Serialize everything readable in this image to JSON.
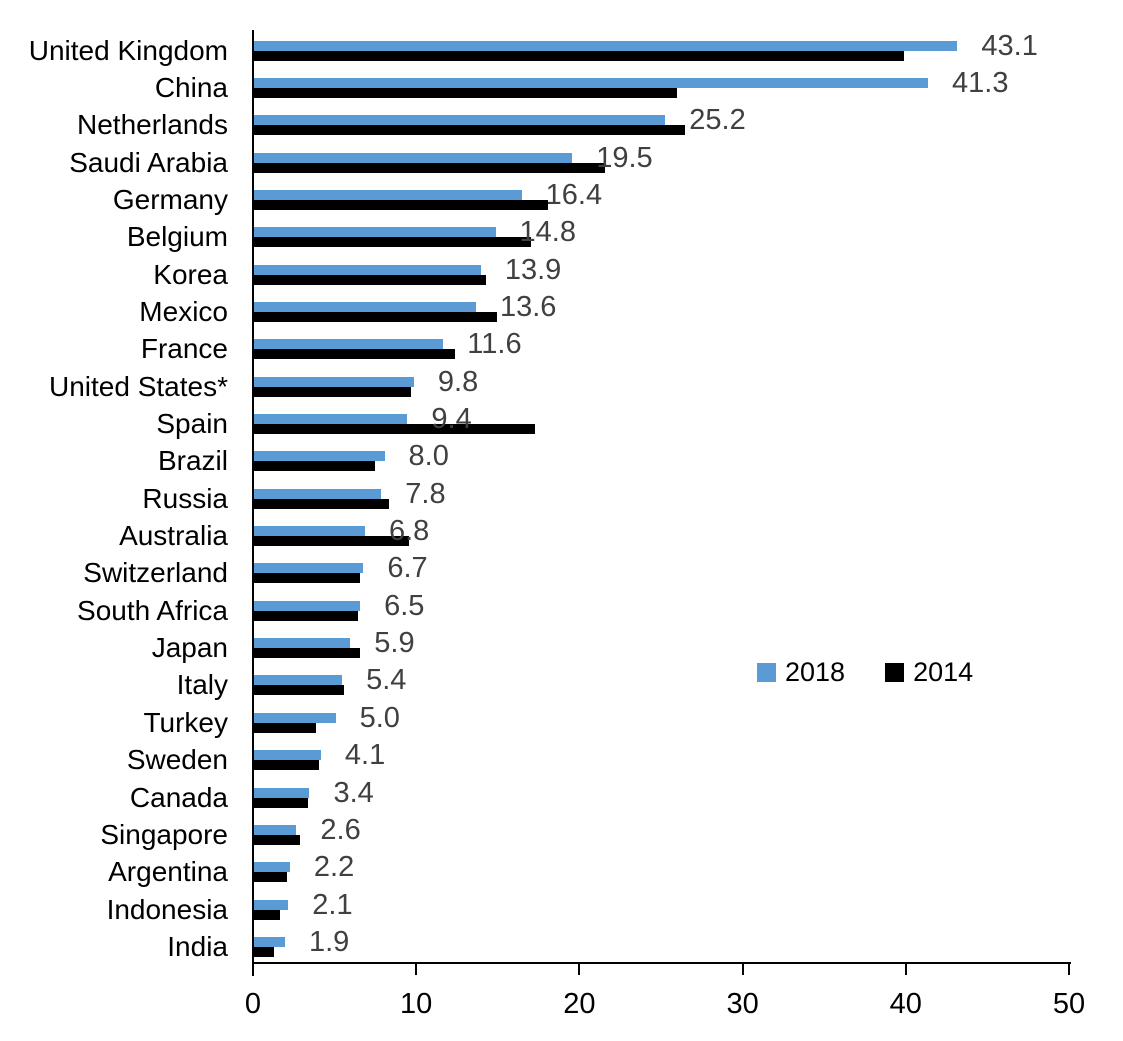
{
  "chart_data": {
    "type": "bar",
    "orientation": "horizontal",
    "title": "",
    "xlabel": "",
    "ylabel": "",
    "xlim": [
      0,
      50
    ],
    "x_ticks": [
      "0",
      "10",
      "20",
      "30",
      "40",
      "50"
    ],
    "grid": false,
    "legend_position": "middle-right",
    "categories": [
      "United Kingdom",
      "China",
      "Netherlands",
      "Saudi Arabia",
      "Germany",
      "Belgium",
      "Korea",
      "Mexico",
      "France",
      "United States*",
      "Spain",
      "Brazil",
      "Russia",
      "Australia",
      "Switzerland",
      "South Africa",
      "Japan",
      "Italy",
      "Turkey",
      "Sweden",
      "Canada",
      "Singapore",
      "Argentina",
      "Indonesia",
      "India"
    ],
    "series": [
      {
        "name": "2018",
        "color": "#5B9BD5",
        "values": [
          43.1,
          41.3,
          25.2,
          19.5,
          16.4,
          14.8,
          13.9,
          13.6,
          11.6,
          9.8,
          9.4,
          8.0,
          7.8,
          6.8,
          6.7,
          6.5,
          5.9,
          5.4,
          5.0,
          4.1,
          3.4,
          2.6,
          2.2,
          2.1,
          1.9
        ]
      },
      {
        "name": "2014",
        "color": "#000000",
        "values": [
          39.8,
          25.9,
          26.4,
          21.5,
          18.0,
          17.0,
          14.2,
          14.9,
          12.3,
          9.6,
          17.2,
          7.4,
          8.3,
          9.5,
          6.5,
          6.4,
          6.5,
          5.5,
          3.8,
          4.0,
          3.3,
          2.8,
          2.0,
          1.6,
          1.2
        ]
      }
    ],
    "data_labels": {
      "series": "2018",
      "color": "#404040",
      "values": [
        "43.1",
        "41.3",
        "25.2",
        "19.5",
        "16.4",
        "14.8",
        "13.9",
        "13.6",
        "11.6",
        "9.8",
        "9.4",
        "8.0",
        "7.8",
        "6.8",
        "6.7",
        "6.5",
        "5.9",
        "5.4",
        "5.0",
        "4.1",
        "3.4",
        "2.6",
        "2.2",
        "2.1",
        "1.9"
      ]
    }
  }
}
